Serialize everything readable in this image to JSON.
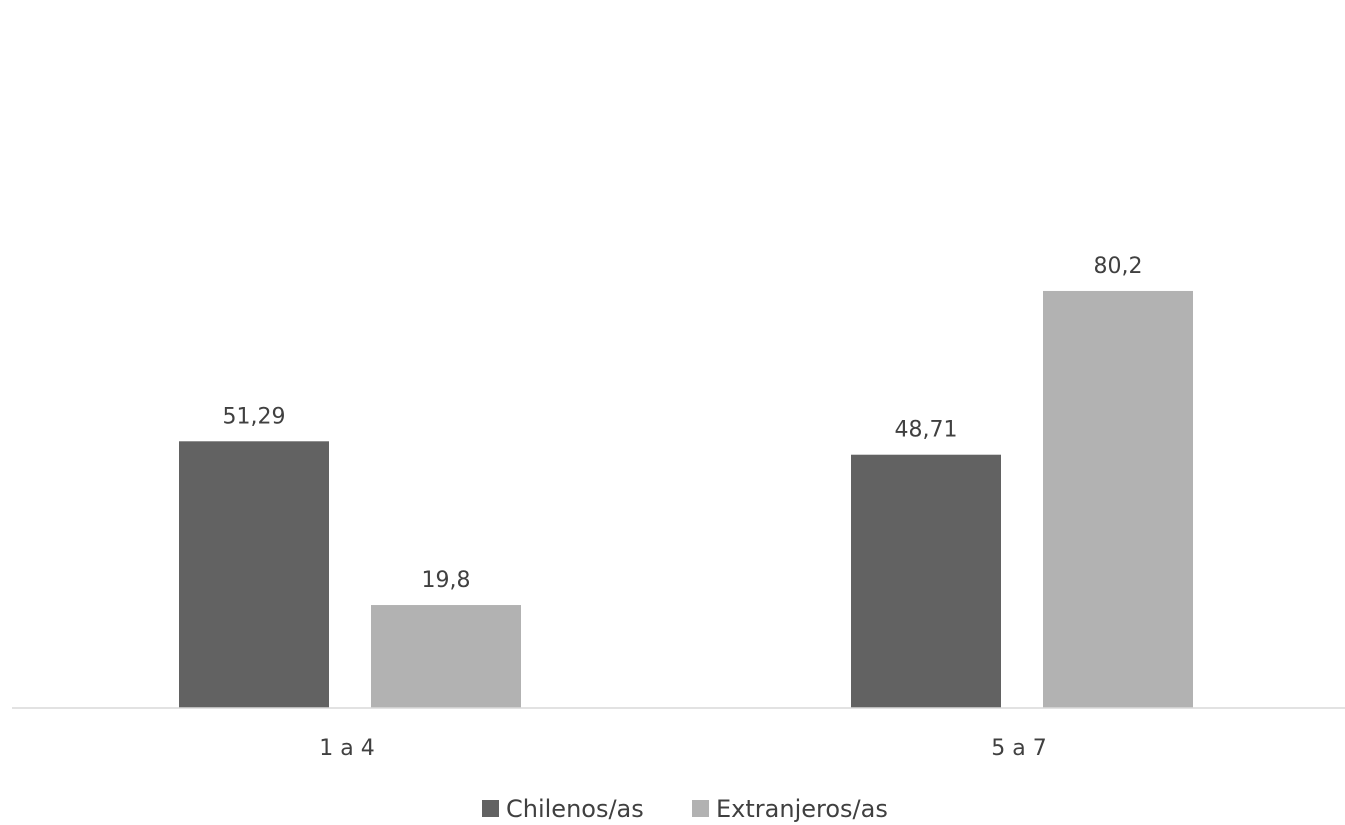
{
  "chart_data": {
    "type": "bar",
    "title": "",
    "xlabel": "",
    "ylabel": "",
    "categories": [
      "1 a 4",
      "5 a 7"
    ],
    "series": [
      {
        "name": "Chilenos/as",
        "values": [
          51.29,
          48.71
        ],
        "labels": [
          "51,29",
          "48,71"
        ],
        "color": "#626262"
      },
      {
        "name": "Extranjeros/as",
        "values": [
          19.8,
          80.2
        ],
        "labels": [
          "19,8",
          "80,2"
        ],
        "color": "#b2b2b2"
      }
    ],
    "ylim": [
      0,
      85
    ],
    "grid": false,
    "legend_position": "bottom",
    "axis_color": "#d9d9d9"
  }
}
